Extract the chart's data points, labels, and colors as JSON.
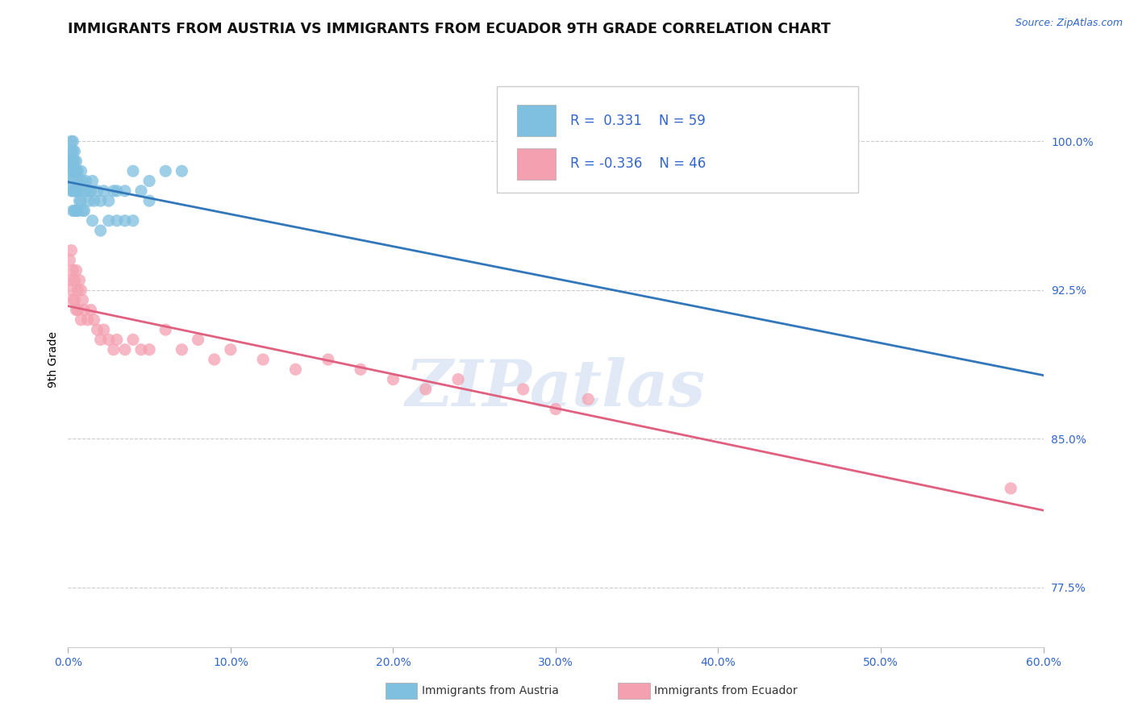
{
  "title": "IMMIGRANTS FROM AUSTRIA VS IMMIGRANTS FROM ECUADOR 9TH GRADE CORRELATION CHART",
  "source": "Source: ZipAtlas.com",
  "ylabel": "9th Grade",
  "austria_color": "#7fbfdf",
  "ecuador_color": "#f4a0b0",
  "austria_line_color": "#3377bb",
  "ecuador_line_color": "#e06080",
  "R_austria": 0.331,
  "N_austria": 59,
  "R_ecuador": -0.336,
  "N_ecuador": 46,
  "xlim": [
    0.0,
    0.6
  ],
  "ylim": [
    0.745,
    1.035
  ],
  "yticks": [
    0.775,
    0.85,
    0.925,
    1.0
  ],
  "ytick_labels": [
    "77.5%",
    "85.0%",
    "92.5%",
    "100.0%"
  ],
  "xticks": [
    0.0,
    0.1,
    0.2,
    0.3,
    0.4,
    0.5,
    0.6
  ],
  "xtick_labels": [
    "0.0%",
    "10.0%",
    "20.0%",
    "30.0%",
    "40.0%",
    "50.0%",
    "60.0%"
  ],
  "austria_x": [
    0.001,
    0.001,
    0.002,
    0.002,
    0.002,
    0.002,
    0.002,
    0.003,
    0.003,
    0.003,
    0.003,
    0.003,
    0.003,
    0.003,
    0.004,
    0.004,
    0.004,
    0.004,
    0.004,
    0.005,
    0.005,
    0.005,
    0.005,
    0.006,
    0.006,
    0.006,
    0.007,
    0.007,
    0.008,
    0.008,
    0.009,
    0.009,
    0.01,
    0.01,
    0.011,
    0.012,
    0.013,
    0.014,
    0.015,
    0.016,
    0.018,
    0.02,
    0.022,
    0.025,
    0.028,
    0.03,
    0.035,
    0.04,
    0.045,
    0.05,
    0.06,
    0.07,
    0.015,
    0.02,
    0.025,
    0.03,
    0.035,
    0.04,
    0.05
  ],
  "austria_y": [
    0.98,
    0.99,
    0.995,
    0.985,
    0.975,
    1.0,
    0.99,
    0.995,
    0.985,
    0.975,
    0.965,
    1.0,
    0.99,
    0.98,
    0.995,
    0.985,
    0.975,
    0.965,
    0.99,
    0.985,
    0.975,
    0.965,
    0.99,
    0.985,
    0.975,
    0.965,
    0.98,
    0.97,
    0.985,
    0.97,
    0.98,
    0.965,
    0.975,
    0.965,
    0.98,
    0.975,
    0.97,
    0.975,
    0.98,
    0.97,
    0.975,
    0.97,
    0.975,
    0.97,
    0.975,
    0.975,
    0.975,
    0.985,
    0.975,
    0.98,
    0.985,
    0.985,
    0.96,
    0.955,
    0.96,
    0.96,
    0.96,
    0.96,
    0.97
  ],
  "ecuador_x": [
    0.001,
    0.001,
    0.002,
    0.002,
    0.003,
    0.003,
    0.004,
    0.004,
    0.005,
    0.005,
    0.006,
    0.006,
    0.007,
    0.008,
    0.008,
    0.009,
    0.01,
    0.012,
    0.014,
    0.016,
    0.018,
    0.02,
    0.022,
    0.025,
    0.028,
    0.03,
    0.035,
    0.04,
    0.045,
    0.05,
    0.06,
    0.07,
    0.08,
    0.09,
    0.1,
    0.12,
    0.14,
    0.16,
    0.18,
    0.2,
    0.22,
    0.24,
    0.28,
    0.32,
    0.58,
    0.3
  ],
  "ecuador_y": [
    0.94,
    0.93,
    0.945,
    0.925,
    0.935,
    0.92,
    0.93,
    0.92,
    0.935,
    0.915,
    0.925,
    0.915,
    0.93,
    0.925,
    0.91,
    0.92,
    0.915,
    0.91,
    0.915,
    0.91,
    0.905,
    0.9,
    0.905,
    0.9,
    0.895,
    0.9,
    0.895,
    0.9,
    0.895,
    0.895,
    0.905,
    0.895,
    0.9,
    0.89,
    0.895,
    0.89,
    0.885,
    0.89,
    0.885,
    0.88,
    0.875,
    0.88,
    0.875,
    0.87,
    0.825,
    0.865
  ],
  "watermark_text": "ZIPatlas",
  "background_color": "#ffffff",
  "grid_color": "#cccccc",
  "tick_color": "#3366cc",
  "title_color": "#111111",
  "source_color": "#3366cc",
  "title_fontsize": 12.5,
  "axis_label_fontsize": 10,
  "tick_fontsize": 10,
  "legend_fontsize": 12
}
